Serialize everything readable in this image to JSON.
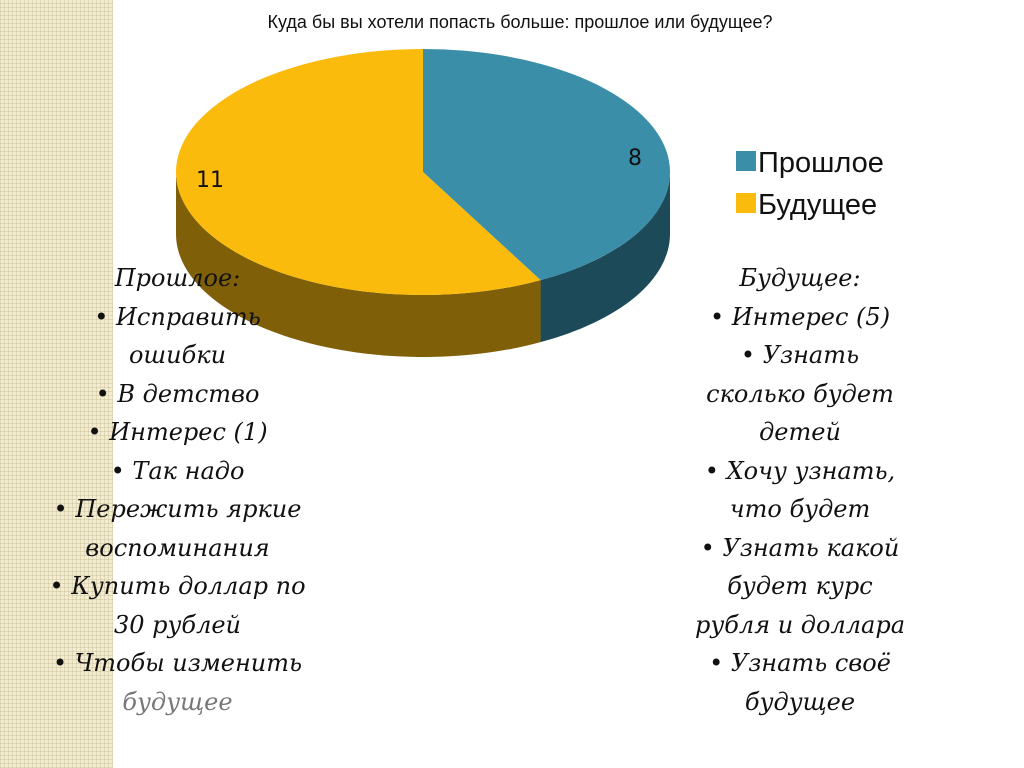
{
  "chart_data": {
    "type": "pie",
    "title": "Куда бы вы хотели попасть больше: прошлое или будущее?",
    "slices": [
      {
        "name": "Прошлое",
        "value": 8,
        "label": "8",
        "color": "#3b8ea8",
        "side_color": "#1d4a58"
      },
      {
        "name": "Будущее",
        "value": 11,
        "label": "11",
        "color": "#fbbb0c",
        "side_color": "#7f5f07"
      }
    ],
    "legend_position": "right",
    "style": "3d"
  },
  "left_list": {
    "heading": "Прошлое:",
    "lines": [
      "• Исправить",
      "ошибки",
      "• В детство",
      "• Интерес (1)",
      "• Так надо",
      "• Пережить яркие",
      "воспоминания",
      "• Купить доллар по",
      "30 рублей",
      "• Чтобы изменить",
      "будущее"
    ]
  },
  "right_list": {
    "heading": "Будущее:",
    "lines": [
      "• Интерес (5)",
      "• Узнать",
      "сколько будет",
      "детей",
      "• Хочу узнать,",
      "что будет",
      "• Узнать какой",
      "будет курс",
      "рубля и доллара",
      "• Узнать своё",
      "будущее"
    ]
  }
}
